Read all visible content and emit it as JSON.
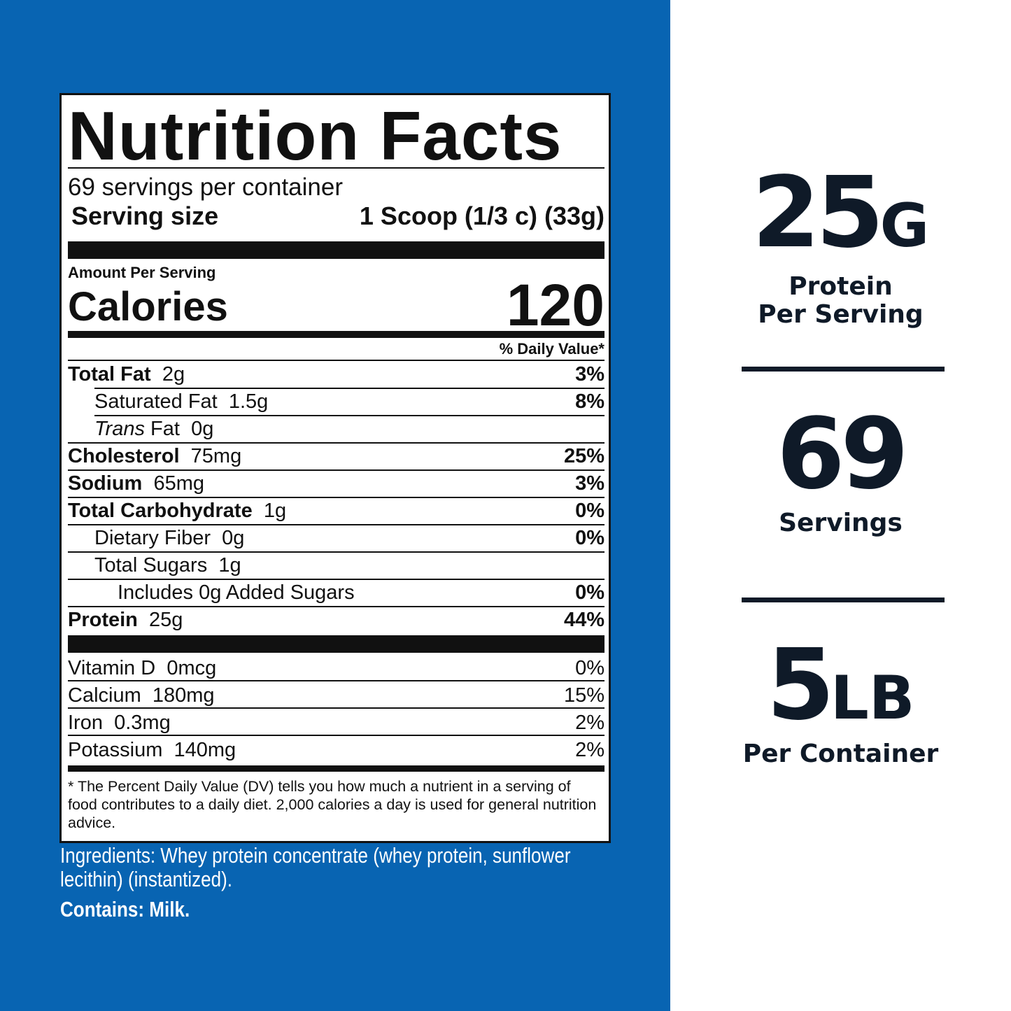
{
  "label": {
    "title": "Nutrition Facts",
    "servings": "69 servings per container",
    "serving_size_label": "Serving size",
    "serving_size_value": "1 Scoop (1/3 c) (33g)",
    "amount_per_serving": "Amount Per Serving",
    "calories_label": "Calories",
    "calories_value": "120",
    "dv_header": "% Daily Value*",
    "nutrients": [
      {
        "name": "Total Fat",
        "amount": "2g",
        "dv": "3%",
        "level": 0
      },
      {
        "name": "Saturated Fat",
        "amount": "1.5g",
        "dv": "8%",
        "level": 1
      },
      {
        "prefix": "Trans",
        "name": "Fat",
        "amount": "0g",
        "level": 1
      },
      {
        "name": "Cholesterol",
        "amount": "75mg",
        "dv": "25%",
        "level": 0
      },
      {
        "name": "Sodium",
        "amount": "65mg",
        "dv": "3%",
        "level": 0
      },
      {
        "name": "Total Carbohydrate",
        "amount": "1g",
        "dv": "0%",
        "level": 0
      },
      {
        "name": "Dietary Fiber",
        "amount": "0g",
        "dv": "0%",
        "level": 1
      },
      {
        "name": "Total Sugars",
        "amount": "1g",
        "level": 1
      },
      {
        "name": "Includes 0g Added Sugars",
        "dv": "0%",
        "level": 2
      },
      {
        "name": "Protein",
        "amount": "25g",
        "dv": "44%",
        "level": 0
      }
    ],
    "vitamins": [
      {
        "name": "Vitamin D",
        "amount": "0mcg",
        "dv": "0%"
      },
      {
        "name": "Calcium",
        "amount": "180mg",
        "dv": "15%"
      },
      {
        "name": "Iron",
        "amount": "0.3mg",
        "dv": "2%"
      },
      {
        "name": "Potassium",
        "amount": "140mg",
        "dv": "2%"
      }
    ],
    "footnote": "* The Percent Daily Value (DV) tells you how much a nutrient in a serving of food contributes to a daily diet. 2,000 calories a day is used for general nutrition advice."
  },
  "ingredients": "Ingredients: Whey protein concentrate (whey protein, sunflower lecithin) (instantized).",
  "contains": "Contains: Milk.",
  "stats": [
    {
      "value": "25",
      "unit": "G",
      "lines": [
        "Protein",
        "Per Serving"
      ]
    },
    {
      "value": "69",
      "lines": [
        "Servings"
      ]
    },
    {
      "value": "5",
      "unit": "LB",
      "lines": [
        "Per Container"
      ]
    }
  ]
}
